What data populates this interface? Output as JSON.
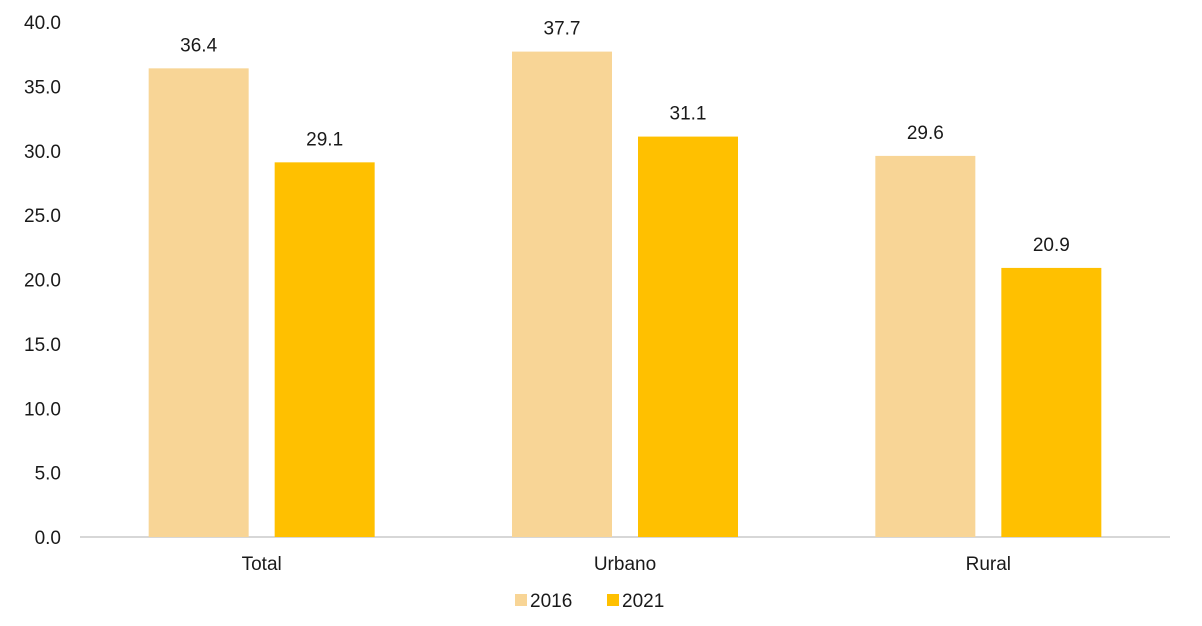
{
  "chart_data": {
    "type": "bar",
    "title": "",
    "xlabel": "",
    "ylabel": "",
    "categories": [
      "Total",
      "Urbano",
      "Rural"
    ],
    "series": [
      {
        "name": "2016",
        "values": [
          36.4,
          37.7,
          29.6
        ],
        "color": "#F8D596"
      },
      {
        "name": "2021",
        "values": [
          29.1,
          31.1,
          20.9
        ],
        "color": "#FFC000"
      }
    ],
    "ylim": [
      0,
      40
    ],
    "yticks": [
      0,
      5,
      10,
      15,
      20,
      25,
      30,
      35,
      40
    ],
    "ytick_labels": [
      "0.0",
      "5.0",
      "10.0",
      "15.0",
      "20.0",
      "25.0",
      "30.0",
      "35.0",
      "40.0"
    ],
    "data_labels": [
      [
        "36.4",
        "37.7",
        "29.6"
      ],
      [
        "29.1",
        "31.1",
        "20.9"
      ]
    ],
    "grid": false,
    "legend": "bottom-center"
  }
}
